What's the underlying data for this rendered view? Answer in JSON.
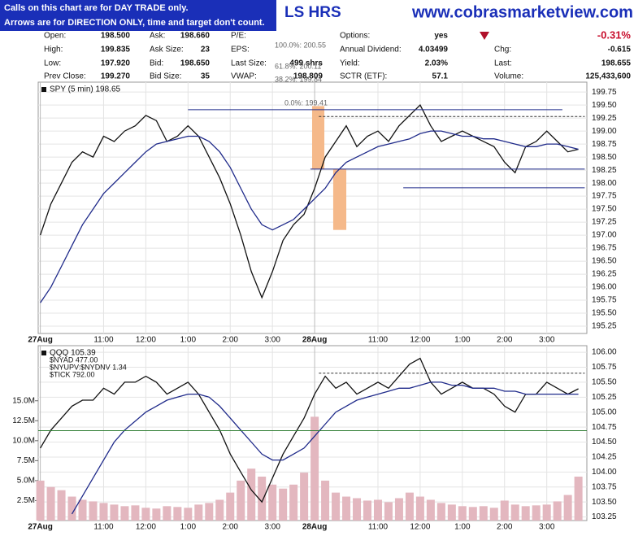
{
  "notice": [
    "Calls on this chart are for DAY TRADE only.",
    "Arrows are for DIRECTION ONLY, time and target don't count."
  ],
  "title": "LS HRS",
  "site": "www.cobrasmarketview.com",
  "change": "-0.31%",
  "quote": [
    [
      [
        "Open:",
        "198.500"
      ],
      [
        "High:",
        "199.835"
      ],
      [
        "Low:",
        "197.920"
      ],
      [
        "Prev Close:",
        "199.270"
      ]
    ],
    [
      [
        "Ask:",
        "198.660"
      ],
      [
        "Ask Size:",
        "23"
      ],
      [
        "Bid:",
        "198.650"
      ],
      [
        "Bid Size:",
        "35"
      ]
    ],
    [
      [
        "P/E:"
      ],
      [
        "EPS:"
      ],
      [
        "Last Size:",
        "499 shrs"
      ],
      [
        "VWAP:",
        "198.809"
      ]
    ],
    [
      [
        "Options:",
        "yes"
      ],
      [
        "Annual Dividend:",
        "4.03499"
      ],
      [
        "Yield:",
        "2.03%"
      ],
      [
        "SCTR (ETF):",
        "57.1"
      ]
    ],
    [
      [
        "Chg:",
        "-0.615"
      ],
      [
        "Last:",
        "198.655"
      ],
      [
        "Volume:",
        "125,433,600"
      ]
    ]
  ],
  "chart_data": [
    {
      "type": "line",
      "title": "SPY (5 min) 198.65",
      "annotations": [
        "100.0%: 200.55",
        "61.8%: 200.11",
        "38.2%: 199.84",
        "0.0%: 199.41"
      ],
      "x": [
        0,
        0.25,
        0.5,
        0.75,
        1,
        1.25,
        1.5,
        1.75,
        2,
        2.25,
        2.5,
        2.75,
        3,
        3.25,
        3.5,
        3.75,
        4,
        4.25,
        4.5,
        4.75,
        5,
        5.25,
        5.5,
        5.75,
        6,
        6.25,
        6.5,
        6.75,
        7,
        7.25,
        7.5,
        7.75,
        8,
        8.25,
        8.5,
        8.75,
        9,
        9.25,
        9.5,
        9.75,
        10,
        10.25,
        10.5,
        10.75,
        11,
        11.25,
        11.5,
        11.75,
        12,
        12.25,
        12.5,
        12.75
      ],
      "xlim": [
        -0.05,
        12.95
      ],
      "xticks": [
        {
          "value": 0,
          "label": "27Aug"
        },
        {
          "value": 1.5,
          "label": "11:00"
        },
        {
          "value": 2.5,
          "label": "12:00"
        },
        {
          "value": 3.5,
          "label": "1:00"
        },
        {
          "value": 4.5,
          "label": "2:00"
        },
        {
          "value": 5.5,
          "label": "3:00"
        },
        {
          "value": 6.5,
          "label": "28Aug"
        },
        {
          "value": 8,
          "label": "11:00"
        },
        {
          "value": 9,
          "label": "12:00"
        },
        {
          "value": 10,
          "label": "1:00"
        },
        {
          "value": 11,
          "label": "2:00"
        },
        {
          "value": 12,
          "label": "3:00"
        }
      ],
      "ylim": [
        195.11,
        199.94
      ],
      "yticks": [
        195.25,
        {
          "value": 195.5,
          "label": "195.50"
        },
        195.75,
        {
          "value": 196,
          "label": "196.00"
        },
        196.25,
        {
          "value": 196.5,
          "label": "196.50"
        },
        196.75,
        {
          "value": 197,
          "label": "197.00"
        },
        197.25,
        {
          "value": 197.5,
          "label": "197.50"
        },
        197.75,
        {
          "value": 198,
          "label": "198.00"
        },
        198.25,
        {
          "value": 198.5,
          "label": "198.50"
        },
        198.75,
        {
          "value": 199,
          "label": "199.00"
        },
        199.25,
        {
          "value": 199.5,
          "label": "199.50"
        },
        199.75
      ],
      "grid": true,
      "series": [
        {
          "name": "SPY (5 min) 198.65",
          "color": "#111111",
          "values": [
            197.0,
            197.6,
            198.0,
            198.4,
            198.6,
            198.5,
            198.9,
            198.8,
            199.0,
            199.1,
            199.3,
            199.2,
            198.8,
            198.9,
            199.1,
            198.9,
            198.5,
            198.1,
            197.6,
            197.0,
            196.3,
            195.8,
            196.3,
            196.9,
            197.2,
            197.4,
            197.9,
            198.5,
            198.8,
            199.1,
            198.7,
            198.9,
            199.0,
            198.8,
            199.1,
            199.3,
            199.5,
            199.1,
            198.8,
            198.9,
            199.0,
            198.9,
            198.8,
            198.7,
            198.4,
            198.2,
            198.7,
            198.8,
            199.0,
            198.8,
            198.6,
            198.65
          ]
        },
        {
          "color": "#1f2a8a",
          "values": [
            195.7,
            196.0,
            196.4,
            196.8,
            197.2,
            197.5,
            197.8,
            198.0,
            198.2,
            198.4,
            198.6,
            198.75,
            198.8,
            198.85,
            198.9,
            198.9,
            198.8,
            198.6,
            198.3,
            197.9,
            197.5,
            197.2,
            197.1,
            197.2,
            197.3,
            197.5,
            197.7,
            197.9,
            198.2,
            198.4,
            198.5,
            198.6,
            198.7,
            198.75,
            198.8,
            198.85,
            198.95,
            199.0,
            199.0,
            198.95,
            198.9,
            198.9,
            198.85,
            198.85,
            198.8,
            198.75,
            198.7,
            198.7,
            198.75,
            198.75,
            198.7,
            198.65
          ]
        }
      ],
      "hlines": [
        {
          "value": 199.41,
          "x": [
            3.5,
            12.37
          ],
          "color": "#1f2a8a",
          "dashed": false
        },
        {
          "value": 199.28,
          "x": [
            6.6,
            12.9
          ],
          "color": "#333333",
          "dashed": true
        },
        {
          "value": 198.27,
          "x": [
            6.4,
            12.9
          ],
          "color": "#1f2a8a",
          "dashed": false
        },
        {
          "value": 197.91,
          "x": [
            8.6,
            12.9
          ],
          "color": "#1f2a8a",
          "dashed": false
        }
      ],
      "highlights": [
        {
          "x": [
            6.44,
            6.73
          ],
          "y": [
            198.27,
            199.48
          ],
          "color": "#f5b98a"
        },
        {
          "x": [
            6.94,
            7.25
          ],
          "y": [
            197.1,
            198.27
          ],
          "color": "#f5b98a"
        }
      ]
    },
    {
      "type": "line",
      "title": "QQQ 105.39",
      "legend_entries": [
        "$NYAD 477.00",
        "$NYUPV:$NYDNV 1.34",
        "$TICK 792.00"
      ],
      "x": [
        0,
        0.25,
        0.5,
        0.75,
        1,
        1.25,
        1.5,
        1.75,
        2,
        2.25,
        2.5,
        2.75,
        3,
        3.25,
        3.5,
        3.75,
        4,
        4.25,
        4.5,
        4.75,
        5,
        5.25,
        5.5,
        5.75,
        6,
        6.25,
        6.5,
        6.75,
        7,
        7.25,
        7.5,
        7.75,
        8,
        8.25,
        8.5,
        8.75,
        9,
        9.25,
        9.5,
        9.75,
        10,
        10.25,
        10.5,
        10.75,
        11,
        11.25,
        11.5,
        11.75,
        12,
        12.25,
        12.5,
        12.75
      ],
      "xlim": [
        -0.05,
        12.95
      ],
      "xticks": [
        {
          "value": 0,
          "label": "27Aug"
        },
        {
          "value": 1.5,
          "label": "11:00"
        },
        {
          "value": 2.5,
          "label": "12:00"
        },
        {
          "value": 3.5,
          "label": "1:00"
        },
        {
          "value": 4.5,
          "label": "2:00"
        },
        {
          "value": 5.5,
          "label": "3:00"
        },
        {
          "value": 6.5,
          "label": "28Aug"
        },
        {
          "value": 8,
          "label": "11:00"
        },
        {
          "value": 9,
          "label": "12:00"
        },
        {
          "value": 10,
          "label": "1:00"
        },
        {
          "value": 11,
          "label": "2:00"
        },
        {
          "value": 12,
          "label": "3:00"
        }
      ],
      "ylim": [
        103.19,
        106.11
      ],
      "yticks": [
        103.25,
        {
          "value": 103.5,
          "label": "103.50"
        },
        103.75,
        {
          "value": 104,
          "label": "104.00"
        },
        104.25,
        {
          "value": 104.5,
          "label": "104.50"
        },
        104.75,
        {
          "value": 105,
          "label": "105.00"
        },
        105.25,
        {
          "value": 105.5,
          "label": "105.50"
        },
        105.75,
        {
          "value": 106,
          "label": "106.00"
        }
      ],
      "y2lim": [
        0,
        21.9
      ],
      "y2ticks": [
        {
          "value": 2.5,
          "label": "2.5M"
        },
        {
          "value": 5,
          "label": "5.0M"
        },
        {
          "value": 7.5,
          "label": "7.5M"
        },
        {
          "value": 10,
          "label": "10.0M"
        },
        {
          "value": 12.5,
          "label": "12.5M"
        },
        {
          "value": 15,
          "label": "15.0M"
        }
      ],
      "grid": true,
      "series": [
        {
          "type": "bar",
          "axis": "y2",
          "color": "#e3b7bf",
          "values": [
            5.0,
            4.2,
            3.8,
            3.0,
            2.6,
            2.4,
            2.2,
            2.0,
            1.8,
            1.9,
            1.6,
            1.5,
            1.8,
            1.7,
            1.6,
            2.0,
            2.2,
            2.6,
            3.5,
            5.0,
            6.5,
            5.5,
            4.5,
            4.0,
            4.5,
            6.0,
            13.0,
            5.0,
            3.5,
            3.0,
            2.8,
            2.5,
            2.6,
            2.3,
            2.8,
            3.5,
            3.0,
            2.6,
            2.2,
            2.0,
            1.8,
            1.7,
            1.8,
            1.6,
            2.5,
            2.0,
            1.8,
            1.9,
            2.0,
            2.4,
            3.2,
            5.5
          ]
        },
        {
          "name": "QQQ 105.39",
          "color": "#111111",
          "values": [
            104.4,
            104.7,
            104.9,
            105.1,
            105.2,
            105.2,
            105.4,
            105.3,
            105.5,
            105.5,
            105.6,
            105.5,
            105.3,
            105.4,
            105.5,
            105.3,
            105.0,
            104.7,
            104.3,
            104.0,
            103.7,
            103.5,
            103.9,
            104.3,
            104.6,
            104.9,
            105.3,
            105.6,
            105.4,
            105.5,
            105.3,
            105.4,
            105.5,
            105.4,
            105.6,
            105.8,
            105.9,
            105.5,
            105.3,
            105.4,
            105.5,
            105.4,
            105.4,
            105.3,
            105.1,
            105.0,
            105.3,
            105.3,
            105.5,
            105.4,
            105.3,
            105.39
          ]
        },
        {
          "color": "#1f2a8a",
          "values": [
            null,
            null,
            null,
            103.3,
            103.6,
            103.9,
            104.2,
            104.5,
            104.7,
            104.85,
            105.0,
            105.1,
            105.2,
            105.25,
            105.3,
            105.3,
            105.25,
            105.1,
            104.9,
            104.7,
            104.5,
            104.3,
            104.2,
            104.2,
            104.3,
            104.4,
            104.6,
            104.8,
            105.0,
            105.1,
            105.2,
            105.25,
            105.3,
            105.35,
            105.4,
            105.4,
            105.45,
            105.5,
            105.5,
            105.45,
            105.45,
            105.4,
            105.4,
            105.4,
            105.35,
            105.35,
            105.3,
            105.3,
            105.3,
            105.3,
            105.3,
            105.3
          ]
        }
      ],
      "hlines": [
        {
          "value": 105.65,
          "x": [
            6.6,
            12.9
          ],
          "color": "#333333",
          "dashed": true
        },
        {
          "value": 104.69,
          "x": [
            -0.05,
            12.95
          ],
          "color": "#2e7d32",
          "dashed": false
        }
      ],
      "highlights": []
    }
  ]
}
